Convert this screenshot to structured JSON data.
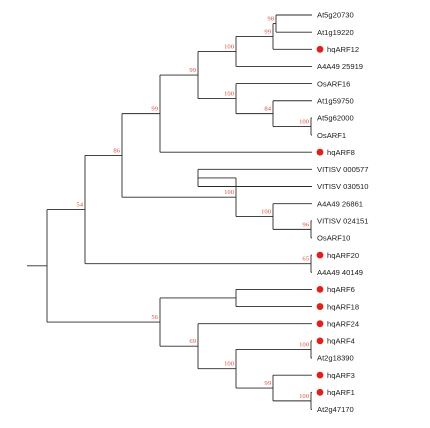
{
  "tree": {
    "leaves": [
      {
        "id": "L1",
        "label": "At5g20730",
        "highlight": false
      },
      {
        "id": "L2",
        "label": "At1g19220",
        "highlight": false
      },
      {
        "id": "L3",
        "label": "hqARF12",
        "highlight": true
      },
      {
        "id": "L4",
        "label": "A4A49 25919",
        "highlight": false
      },
      {
        "id": "L5",
        "label": "OsARF16",
        "highlight": false
      },
      {
        "id": "L6",
        "label": "At1g59750",
        "highlight": false
      },
      {
        "id": "L7",
        "label": "At5g62000",
        "highlight": false
      },
      {
        "id": "L8",
        "label": "OsARF1",
        "highlight": false
      },
      {
        "id": "L9",
        "label": "hqARF8",
        "highlight": true
      },
      {
        "id": "L10",
        "label": "VITISV 000577",
        "highlight": false
      },
      {
        "id": "L11",
        "label": "VITISV 030510",
        "highlight": false
      },
      {
        "id": "L12",
        "label": "A4A49 26861",
        "highlight": false
      },
      {
        "id": "L13",
        "label": "VITISV 024151",
        "highlight": false
      },
      {
        "id": "L14",
        "label": "OsARF10",
        "highlight": false
      },
      {
        "id": "L15",
        "label": "hqARF20",
        "highlight": true
      },
      {
        "id": "L16",
        "label": "A4A49 40149",
        "highlight": false
      },
      {
        "id": "L17",
        "label": "hqARF6",
        "highlight": true
      },
      {
        "id": "L18",
        "label": "hqARF18",
        "highlight": true
      },
      {
        "id": "L19",
        "label": "hqARF24",
        "highlight": true
      },
      {
        "id": "L20",
        "label": "hqARF4",
        "highlight": true
      },
      {
        "id": "L21",
        "label": "At2g18390",
        "highlight": false
      },
      {
        "id": "L22",
        "label": "hqARF3",
        "highlight": true
      },
      {
        "id": "L23",
        "label": "hqARF1",
        "highlight": true
      },
      {
        "id": "L24",
        "label": "At2g47170",
        "highlight": false
      }
    ],
    "nodes": [
      {
        "id": "N1",
        "children": [
          "L1",
          "L2"
        ],
        "bootstrap": "98"
      },
      {
        "id": "N2",
        "children": [
          "N1",
          "L3"
        ],
        "bootstrap": "99"
      },
      {
        "id": "N3",
        "children": [
          "N2",
          "L4"
        ],
        "bootstrap": "100"
      },
      {
        "id": "N4",
        "children": [
          "L7",
          "L8"
        ],
        "bootstrap": "100"
      },
      {
        "id": "N5",
        "children": [
          "L6",
          "N4"
        ],
        "bootstrap": "84"
      },
      {
        "id": "N6",
        "children": [
          "L5",
          "N5"
        ],
        "bootstrap": "100"
      },
      {
        "id": "N7",
        "children": [
          "N3",
          "N6"
        ],
        "bootstrap": "99"
      },
      {
        "id": "N8",
        "children": [
          "N7",
          "L9"
        ],
        "bootstrap": "99"
      },
      {
        "id": "N9",
        "children": [
          "L10",
          "L11"
        ],
        "bootstrap": ""
      },
      {
        "id": "N10",
        "children": [
          "L13",
          "L14"
        ],
        "bootstrap": "96"
      },
      {
        "id": "N11",
        "children": [
          "L12",
          "N10"
        ],
        "bootstrap": "100"
      },
      {
        "id": "N12",
        "children": [
          "N9",
          "N11"
        ],
        "bootstrap": "100"
      },
      {
        "id": "N13",
        "children": [
          "N8",
          "N12"
        ],
        "bootstrap": "86"
      },
      {
        "id": "N14",
        "children": [
          "L15",
          "L16"
        ],
        "bootstrap": "65"
      },
      {
        "id": "N15",
        "children": [
          "N13",
          "N14"
        ],
        "bootstrap": "54"
      },
      {
        "id": "N16",
        "children": [
          "L17",
          "L18"
        ],
        "bootstrap": ""
      },
      {
        "id": "N17",
        "children": [
          "L20",
          "L21"
        ],
        "bootstrap": "100"
      },
      {
        "id": "N18",
        "children": [
          "L23",
          "L24"
        ],
        "bootstrap": "100"
      },
      {
        "id": "N19",
        "children": [
          "L22",
          "N18"
        ],
        "bootstrap": "99"
      },
      {
        "id": "N20",
        "children": [
          "N17",
          "N19"
        ],
        "bootstrap": "100"
      },
      {
        "id": "N21",
        "children": [
          "L19",
          "N20"
        ],
        "bootstrap": "69"
      },
      {
        "id": "N22",
        "children": [
          "N16",
          "N21"
        ],
        "bootstrap": "56"
      },
      {
        "id": "N23",
        "children": [
          "N15",
          "N22"
        ],
        "bootstrap": ""
      }
    ]
  },
  "colors": {
    "branch": "#2a2a2a",
    "bootstrap": "#d9503f",
    "highlight_marker": "#e0201c",
    "label": "#1a1a1a"
  }
}
